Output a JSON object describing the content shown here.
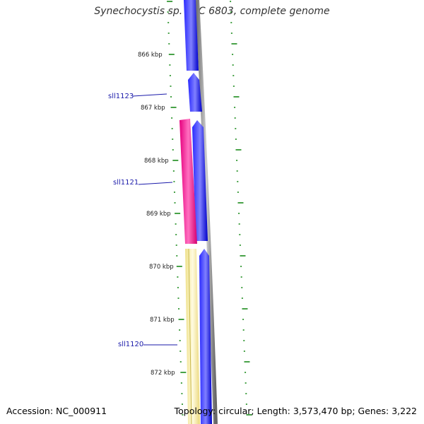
{
  "title": "Synechocystis sp. PCC 6803, complete genome",
  "footer": {
    "accession": "Accession: NC_000911",
    "summary": "Topology: circular; Length: 3,573,470 bp; Genes: 3,222"
  },
  "ruler_ticks": [
    "866 kbp",
    "867 kbp",
    "868 kbp",
    "869 kbp",
    "870 kbp",
    "871 kbp",
    "872 kbp"
  ],
  "genes": [
    {
      "name": "sll1123",
      "strand": "minus",
      "track": "blue"
    },
    {
      "name": "sll1121",
      "strand": "minus",
      "track": "pink"
    },
    {
      "name": "sll1120",
      "strand": "minus",
      "track": "yellow"
    }
  ],
  "colors": {
    "cds": "#0000ff",
    "gene_pink": "#ff1493",
    "gene_yellow": "#f5eda0",
    "backbone": "#888888",
    "ticks": "#1a8a1a",
    "gene_label": "#1a1aaa"
  }
}
